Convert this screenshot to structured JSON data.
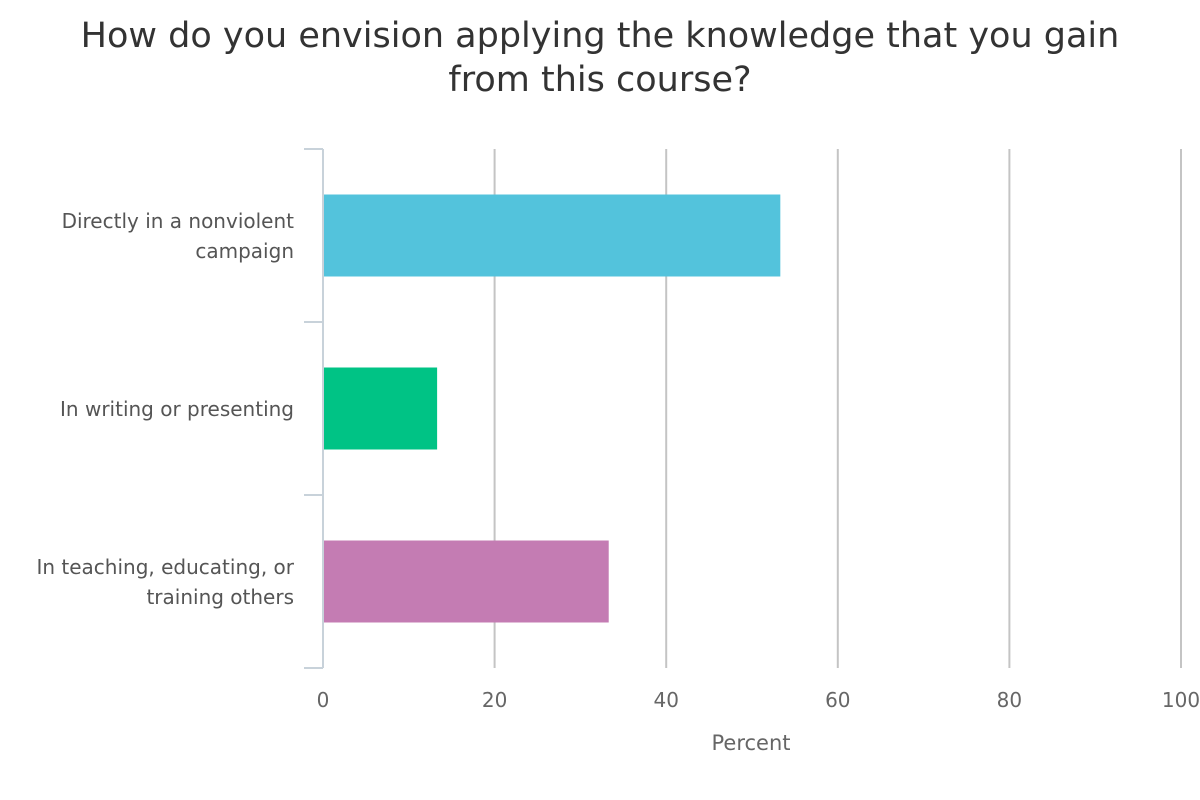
{
  "chart_data": {
    "type": "bar",
    "orientation": "horizontal",
    "title": "How do you envision applying the knowledge that you gain from this course?",
    "xlabel": "Percent",
    "ylabel": "",
    "categories": [
      "Directly in a nonviolent campaign",
      "In writing or presenting",
      "In teaching, educating, or training others"
    ],
    "values": [
      53.3,
      13.3,
      33.3
    ],
    "colors": [
      "#53c3dc",
      "#00c385",
      "#c47cb3"
    ],
    "xlim": [
      0,
      100
    ],
    "xticks": [
      "0",
      "20",
      "40",
      "60",
      "80",
      "100"
    ],
    "grid": true,
    "legend": "none"
  }
}
